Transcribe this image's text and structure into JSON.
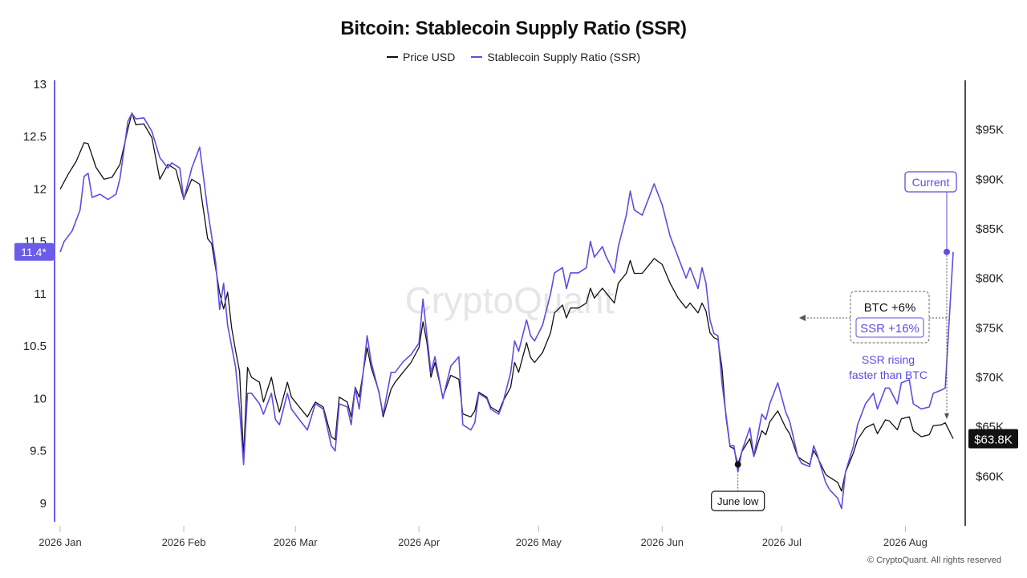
{
  "chart_data": {
    "type": "line",
    "title": "Bitcoin: Stablecoin Supply Ratio (SSR)",
    "legend": [
      "Price USD",
      "Stablecoin Supply Ratio (SSR)"
    ],
    "legend_placement": "top-center",
    "grid": false,
    "x_axis": {
      "ticks": [
        "2026 Jan",
        "2026 Feb",
        "2026 Mar",
        "2026 Apr",
        "2026 May",
        "2026 Jun",
        "2026 Jul",
        "2026 Aug"
      ],
      "range_days": [
        0,
        224
      ]
    },
    "y_left": {
      "label": "",
      "range": [
        8.9,
        13.0
      ],
      "ticks": [
        "13",
        "12.5",
        "12",
        "11.5",
        "11",
        "10.5",
        "10",
        "9.5",
        "9"
      ]
    },
    "y_right": {
      "label": "",
      "range": [
        55000,
        100000
      ],
      "ticks": [
        "$95K",
        "$90K",
        "$85K",
        "$80K",
        "$75K",
        "$70K",
        "$65K",
        "$60K"
      ]
    },
    "series": [
      {
        "name": "Price USD",
        "color": "#111111",
        "axis": "right",
        "points": [
          [
            0,
            89000
          ],
          [
            2,
            90500
          ],
          [
            4,
            91800
          ],
          [
            6,
            93700
          ],
          [
            7,
            93600
          ],
          [
            9,
            91200
          ],
          [
            11,
            90000
          ],
          [
            13,
            90200
          ],
          [
            15,
            91500
          ],
          [
            17,
            95100
          ],
          [
            18,
            96700
          ],
          [
            19,
            95500
          ],
          [
            21,
            95600
          ],
          [
            23,
            94200
          ],
          [
            25,
            90000
          ],
          [
            27,
            91500
          ],
          [
            29,
            91000
          ],
          [
            31,
            88000
          ],
          [
            33,
            90000
          ],
          [
            35,
            89500
          ],
          [
            37,
            84000
          ],
          [
            38,
            83500
          ],
          [
            40,
            78500
          ],
          [
            41,
            76900
          ],
          [
            42,
            78600
          ],
          [
            43,
            75000
          ],
          [
            44,
            72700
          ],
          [
            45,
            70600
          ],
          [
            46,
            62000
          ],
          [
            47,
            71000
          ],
          [
            48,
            70000
          ],
          [
            50,
            69500
          ],
          [
            51,
            67500
          ],
          [
            53,
            70000
          ],
          [
            54,
            68000
          ],
          [
            55,
            66500
          ],
          [
            57,
            69500
          ],
          [
            58,
            68000
          ],
          [
            60,
            67000
          ],
          [
            62,
            66000
          ],
          [
            64,
            67500
          ],
          [
            66,
            67000
          ],
          [
            68,
            64000
          ],
          [
            69,
            63700
          ],
          [
            70,
            68000
          ],
          [
            72,
            67500
          ],
          [
            73,
            66000
          ],
          [
            74,
            69000
          ],
          [
            75,
            68000
          ],
          [
            77,
            73000
          ],
          [
            78,
            71000
          ],
          [
            80,
            68500
          ],
          [
            81,
            66000
          ],
          [
            83,
            68800
          ],
          [
            84,
            69500
          ],
          [
            86,
            70500
          ],
          [
            88,
            71500
          ],
          [
            90,
            73000
          ],
          [
            91,
            75600
          ],
          [
            92,
            73500
          ],
          [
            93,
            70000
          ],
          [
            94,
            71500
          ],
          [
            96,
            68000
          ],
          [
            98,
            70200
          ],
          [
            100,
            69800
          ],
          [
            101,
            66300
          ],
          [
            103,
            66000
          ],
          [
            104,
            66600
          ],
          [
            105,
            68500
          ],
          [
            107,
            68000
          ],
          [
            108,
            67000
          ],
          [
            110,
            66500
          ],
          [
            111,
            67500
          ],
          [
            113,
            69000
          ],
          [
            114,
            71500
          ],
          [
            115,
            70500
          ],
          [
            117,
            73500
          ],
          [
            118,
            72000
          ],
          [
            119,
            71500
          ],
          [
            121,
            72500
          ],
          [
            123,
            74500
          ],
          [
            124,
            76500
          ],
          [
            126,
            77300
          ],
          [
            127,
            76000
          ],
          [
            128,
            77000
          ],
          [
            130,
            77000
          ],
          [
            132,
            77500
          ],
          [
            133,
            79000
          ],
          [
            134,
            78000
          ],
          [
            136,
            79000
          ],
          [
            137,
            78500
          ],
          [
            139,
            77500
          ],
          [
            140,
            79500
          ],
          [
            142,
            80500
          ],
          [
            143,
            81800
          ],
          [
            144,
            80500
          ],
          [
            146,
            80500
          ],
          [
            148,
            81500
          ],
          [
            149,
            82000
          ],
          [
            151,
            81400
          ],
          [
            153,
            79500
          ],
          [
            155,
            78000
          ],
          [
            157,
            77000
          ],
          [
            158,
            77500
          ],
          [
            160,
            76500
          ],
          [
            161,
            77500
          ],
          [
            162,
            76700
          ],
          [
            163,
            74500
          ],
          [
            164,
            74000
          ],
          [
            165,
            73800
          ],
          [
            166,
            71000
          ],
          [
            167,
            66000
          ],
          [
            168,
            63000
          ],
          [
            169,
            62800
          ],
          [
            170,
            61200
          ],
          [
            171,
            62500
          ],
          [
            173,
            63800
          ],
          [
            174,
            62000
          ],
          [
            176,
            64600
          ],
          [
            177,
            64200
          ],
          [
            178,
            65500
          ],
          [
            180,
            66600
          ],
          [
            182,
            64900
          ],
          [
            183,
            64300
          ],
          [
            185,
            62000
          ],
          [
            186,
            61700
          ],
          [
            188,
            61200
          ],
          [
            189,
            62600
          ],
          [
            190,
            61900
          ],
          [
            192,
            60200
          ],
          [
            193,
            59900
          ],
          [
            195,
            59400
          ],
          [
            196,
            58500
          ],
          [
            197,
            60400
          ],
          [
            199,
            62400
          ],
          [
            200,
            63700
          ],
          [
            202,
            64900
          ],
          [
            204,
            65300
          ],
          [
            205,
            64300
          ],
          [
            207,
            65700
          ],
          [
            208,
            65600
          ],
          [
            210,
            64700
          ],
          [
            211,
            65800
          ],
          [
            213,
            66000
          ],
          [
            214,
            64600
          ],
          [
            216,
            64000
          ],
          [
            218,
            64200
          ],
          [
            219,
            65100
          ],
          [
            221,
            65200
          ],
          [
            222,
            65400
          ],
          [
            224,
            63800
          ]
        ]
      },
      {
        "name": "Stablecoin Supply Ratio (SSR)",
        "color": "#5b4ee0",
        "axis": "left",
        "points": [
          [
            0,
            11.4
          ],
          [
            1,
            11.5
          ],
          [
            3,
            11.6
          ],
          [
            5,
            11.8
          ],
          [
            6,
            12.12
          ],
          [
            7,
            12.15
          ],
          [
            8,
            11.92
          ],
          [
            10,
            11.95
          ],
          [
            12,
            11.9
          ],
          [
            14,
            11.95
          ],
          [
            15,
            12.1
          ],
          [
            17,
            12.65
          ],
          [
            18,
            12.72
          ],
          [
            19,
            12.67
          ],
          [
            21,
            12.68
          ],
          [
            23,
            12.55
          ],
          [
            25,
            12.3
          ],
          [
            27,
            12.2
          ],
          [
            28,
            12.25
          ],
          [
            30,
            12.2
          ],
          [
            31,
            11.9
          ],
          [
            33,
            12.2
          ],
          [
            35,
            12.4
          ],
          [
            37,
            11.8
          ],
          [
            39,
            11.3
          ],
          [
            40,
            10.85
          ],
          [
            41,
            11.1
          ],
          [
            42,
            10.7
          ],
          [
            44,
            10.3
          ],
          [
            45,
            9.9
          ],
          [
            46,
            9.37
          ],
          [
            47,
            10.05
          ],
          [
            48,
            10.05
          ],
          [
            50,
            9.95
          ],
          [
            51,
            9.85
          ],
          [
            53,
            10.05
          ],
          [
            54,
            9.8
          ],
          [
            55,
            9.75
          ],
          [
            57,
            10.05
          ],
          [
            58,
            9.9
          ],
          [
            60,
            9.8
          ],
          [
            62,
            9.7
          ],
          [
            64,
            9.95
          ],
          [
            66,
            9.9
          ],
          [
            68,
            9.55
          ],
          [
            69,
            9.5
          ],
          [
            70,
            9.95
          ],
          [
            72,
            9.92
          ],
          [
            73,
            9.75
          ],
          [
            74,
            10.1
          ],
          [
            75,
            9.9
          ],
          [
            77,
            10.6
          ],
          [
            78,
            10.35
          ],
          [
            80,
            10.05
          ],
          [
            81,
            9.85
          ],
          [
            83,
            10.25
          ],
          [
            84,
            10.25
          ],
          [
            86,
            10.35
          ],
          [
            88,
            10.42
          ],
          [
            90,
            10.53
          ],
          [
            91,
            10.95
          ],
          [
            92,
            10.6
          ],
          [
            93,
            10.25
          ],
          [
            94,
            10.4
          ],
          [
            96,
            10.0
          ],
          [
            98,
            10.31
          ],
          [
            100,
            10.4
          ],
          [
            101,
            9.75
          ],
          [
            103,
            9.7
          ],
          [
            104,
            9.77
          ],
          [
            105,
            10.05
          ],
          [
            107,
            10.0
          ],
          [
            108,
            9.9
          ],
          [
            110,
            9.85
          ],
          [
            111,
            9.95
          ],
          [
            113,
            10.25
          ],
          [
            114,
            10.55
          ],
          [
            115,
            10.45
          ],
          [
            117,
            10.75
          ],
          [
            118,
            10.6
          ],
          [
            119,
            10.55
          ],
          [
            121,
            10.7
          ],
          [
            123,
            11.0
          ],
          [
            124,
            11.2
          ],
          [
            126,
            11.25
          ],
          [
            127,
            11.05
          ],
          [
            128,
            11.2
          ],
          [
            130,
            11.2
          ],
          [
            132,
            11.25
          ],
          [
            133,
            11.5
          ],
          [
            134,
            11.35
          ],
          [
            136,
            11.45
          ],
          [
            137,
            11.35
          ],
          [
            139,
            11.2
          ],
          [
            140,
            11.45
          ],
          [
            142,
            11.75
          ],
          [
            143,
            11.98
          ],
          [
            144,
            11.8
          ],
          [
            146,
            11.75
          ],
          [
            148,
            11.95
          ],
          [
            149,
            12.05
          ],
          [
            151,
            11.85
          ],
          [
            153,
            11.55
          ],
          [
            155,
            11.35
          ],
          [
            157,
            11.15
          ],
          [
            158,
            11.25
          ],
          [
            160,
            11.05
          ],
          [
            161,
            11.25
          ],
          [
            162,
            11.1
          ],
          [
            163,
            10.75
          ],
          [
            164,
            10.62
          ],
          [
            165,
            10.6
          ],
          [
            166,
            10.15
          ],
          [
            167,
            9.85
          ],
          [
            168,
            9.55
          ],
          [
            169,
            9.55
          ],
          [
            170,
            9.3
          ],
          [
            171,
            9.5
          ],
          [
            173,
            9.72
          ],
          [
            174,
            9.45
          ],
          [
            176,
            9.85
          ],
          [
            177,
            9.8
          ],
          [
            178,
            9.95
          ],
          [
            180,
            10.15
          ],
          [
            182,
            9.87
          ],
          [
            183,
            9.78
          ],
          [
            185,
            9.45
          ],
          [
            186,
            9.38
          ],
          [
            188,
            9.35
          ],
          [
            189,
            9.55
          ],
          [
            190,
            9.45
          ],
          [
            192,
            9.2
          ],
          [
            193,
            9.13
          ],
          [
            195,
            9.05
          ],
          [
            196,
            8.95
          ],
          [
            197,
            9.3
          ],
          [
            199,
            9.55
          ],
          [
            200,
            9.75
          ],
          [
            202,
            9.95
          ],
          [
            204,
            10.05
          ],
          [
            205,
            9.9
          ],
          [
            207,
            10.1
          ],
          [
            208,
            10.1
          ],
          [
            210,
            9.95
          ],
          [
            211,
            10.15
          ],
          [
            213,
            10.18
          ],
          [
            214,
            9.95
          ],
          [
            216,
            9.9
          ],
          [
            218,
            9.92
          ],
          [
            219,
            10.05
          ],
          [
            221,
            10.08
          ],
          [
            222,
            10.1
          ],
          [
            224,
            11.4
          ]
        ]
      }
    ],
    "annotations": {
      "ssr_current_marker": "11.4*",
      "price_current_marker": "$63.8K",
      "current_label": "Current",
      "june_low_label": "June low",
      "btc_change": "BTC +6%",
      "ssr_change": "SSR +16%",
      "note_line1": "SSR rising",
      "note_line2": "faster than BTC"
    },
    "watermark": "CryptoQuant",
    "copyright": "© CryptoQuant. All rights reserved"
  },
  "colors": {
    "price": "#111111",
    "ssr": "#5b4ee0",
    "axis_left": "#6a5ce8"
  }
}
